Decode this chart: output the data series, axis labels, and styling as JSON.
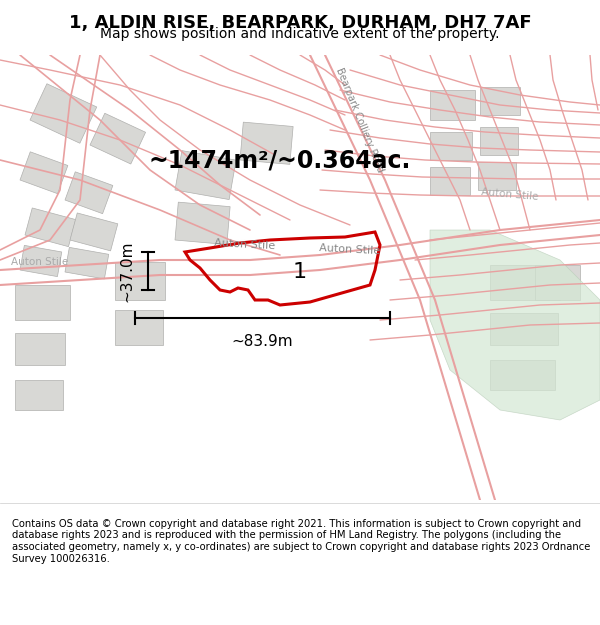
{
  "title": "1, ALDIN RISE, BEARPARK, DURHAM, DH7 7AF",
  "subtitle": "Map shows position and indicative extent of the property.",
  "footer": "Contains OS data © Crown copyright and database right 2021. This information is subject to Crown copyright and database rights 2023 and is reproduced with the permission of HM Land Registry. The polygons (including the associated geometry, namely x, y co-ordinates) are subject to Crown copyright and database rights 2023 Ordnance Survey 100026316.",
  "bg_color": "#f5f5f0",
  "map_bg": "#ffffff",
  "area_text": "~1474m²/~0.364ac.",
  "width_label": "~83.9m",
  "height_label": "~37.0m",
  "label_number": "1",
  "road_label1": "Auton Stile",
  "road_label2": "Auton Stile",
  "road_label3": "Bearpark Colliery Road",
  "road_label4": "Auton Stile",
  "green_patch_color": "#d4e8d4",
  "building_fill": "#e0e0e0",
  "road_line_color": "#f0b0b0",
  "highlight_polygon_color": "#cc0000",
  "highlight_polygon_fill": "none"
}
